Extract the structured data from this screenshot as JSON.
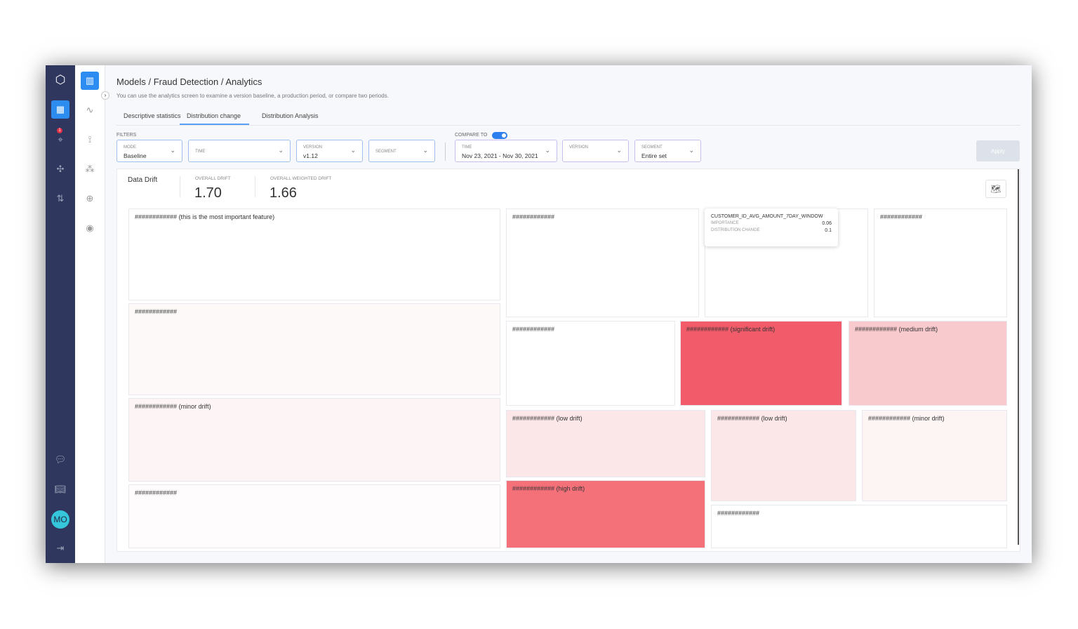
{
  "sidebar": {
    "badge": "1",
    "avatar": "MO"
  },
  "header": {
    "breadcrumb": "Models / Fraud Detection / Analytics",
    "subtitle": "You can use the analytics screen to examine a version baseline, a production period, or compare two periods."
  },
  "tabs": [
    {
      "label": "Descriptive statistics"
    },
    {
      "label": "Distribution change",
      "active": true
    },
    {
      "label": "Distribution Analysis"
    }
  ],
  "filters": {
    "label": "FILTERS",
    "mode": {
      "key": "MODE",
      "value": "Baseline"
    },
    "time": {
      "key": "TIME"
    },
    "version": {
      "key": "VERSION",
      "value": "v1.12"
    },
    "segment": {
      "key": "SEGMENT"
    }
  },
  "compare": {
    "label": "COMPARE TO",
    "enabled": true,
    "time": {
      "key": "TIME",
      "value": "Nov 23, 2021 - Nov 30, 2021"
    },
    "version": {
      "key": "VERSION"
    },
    "segment": {
      "key": "SEGMENT",
      "value": "Entire set"
    }
  },
  "apply_label": "Apply",
  "drift": {
    "title": "Data Drift",
    "overall_label": "OVERALL DRIFT",
    "overall": "1.70",
    "weighted_label": "OVERALL WEIGHTED DRIFT",
    "weighted": "1.66"
  },
  "tiles": [
    {
      "label": "############ (this is the most important feature)",
      "color": "#ffffff"
    },
    {
      "label": "############",
      "color": "#fdf9f9"
    },
    {
      "label": "############ (minor drift)",
      "color": "#fdf5f5"
    },
    {
      "label": "############",
      "color": "#fefcfc"
    },
    {
      "label": "############",
      "color": "#ffffff"
    },
    {
      "label": "",
      "color": "#ffffff"
    },
    {
      "label": "############",
      "color": "#ffffff"
    },
    {
      "label": "############",
      "color": "#ffffff"
    },
    {
      "label": "############ (significant drift)",
      "color": "#f25c6a"
    },
    {
      "label": "############ (medium drift)",
      "color": "#f8c9cd"
    },
    {
      "label": "############ (low drift)",
      "color": "#fce7e8"
    },
    {
      "label": "############ (high drift)",
      "color": "#f4717a"
    },
    {
      "label": "############ (low drift)",
      "color": "#fce7e8"
    },
    {
      "label": "############ (minor drift)",
      "color": "#fdf4f4"
    },
    {
      "label": "############",
      "color": "#ffffff"
    }
  ],
  "tooltip": {
    "feature": "CUSTOMER_ID_AVG_AMOUNT_7DAY_WINDOW",
    "importance_label": "IMPORTANCE",
    "importance": "0.06",
    "change_label": "DISTRIBUTION CHANGE",
    "change": "0.1"
  }
}
